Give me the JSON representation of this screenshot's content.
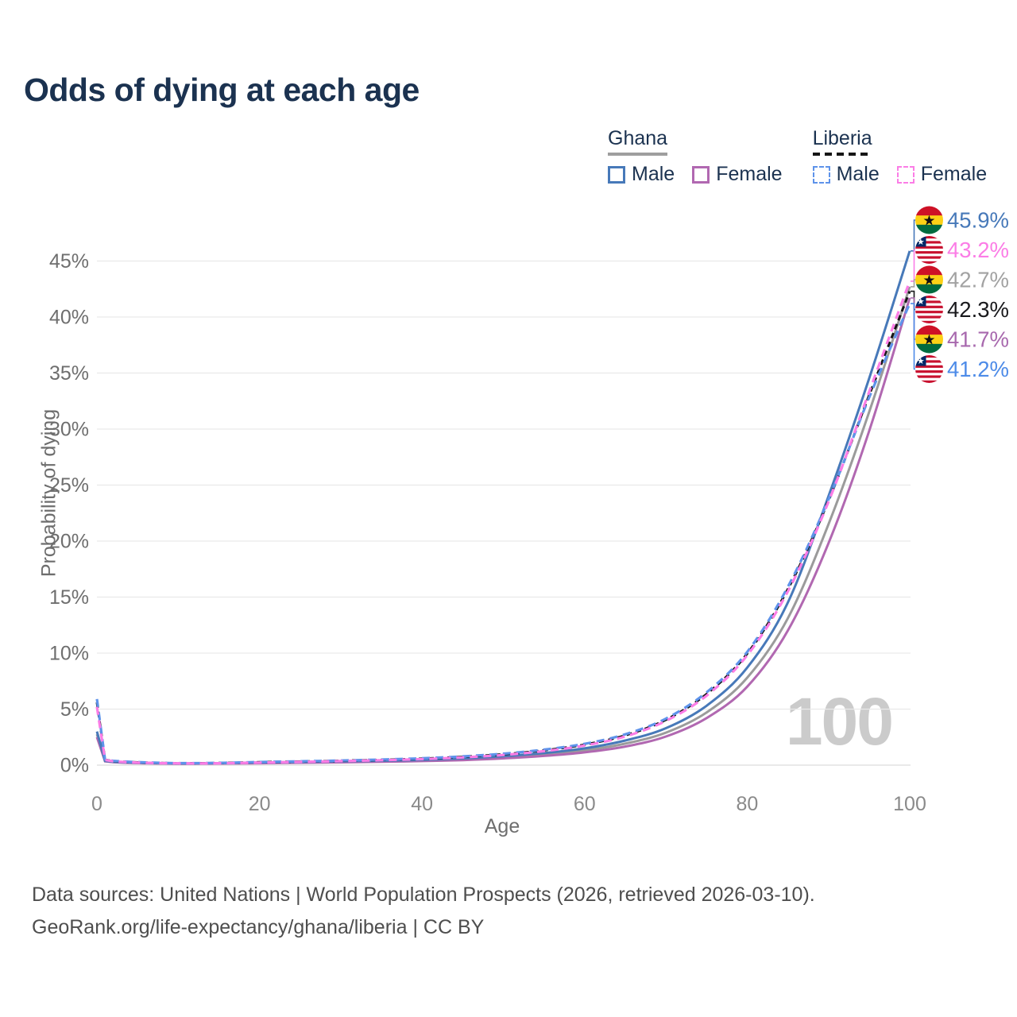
{
  "title": "Odds of dying at each age",
  "legend": {
    "groups": [
      {
        "country": "Ghana",
        "line_style": "solid",
        "line_color": "#9e9e9e",
        "items": [
          {
            "label": "Male",
            "color": "#4779b9",
            "dashed": false
          },
          {
            "label": "Female",
            "color": "#b168b1",
            "dashed": false
          }
        ]
      },
      {
        "country": "Liberia",
        "line_style": "dashed",
        "line_color": "#161616",
        "items": [
          {
            "label": "Male",
            "color": "#5e93ea",
            "dashed": true
          },
          {
            "label": "Female",
            "color": "#fb7de6",
            "dashed": true
          }
        ]
      }
    ]
  },
  "chart_data": {
    "type": "line",
    "title": "Odds of dying at each age",
    "xlabel": "Age",
    "ylabel": "Probability of dying",
    "xlim": [
      0,
      100
    ],
    "ylim_pct": [
      0,
      47
    ],
    "x_ticks": [
      0,
      20,
      40,
      60,
      80,
      100
    ],
    "y_ticks_pct": [
      0,
      5,
      10,
      15,
      20,
      25,
      30,
      35,
      40,
      45
    ],
    "grid": "horizontal",
    "legend_position": "top-right",
    "watermark": "100",
    "series": [
      {
        "id": "ghana-all",
        "name": "Ghana (both sexes)",
        "country": "ghana",
        "color": "#9b9b9b",
        "dash": null,
        "width": 3,
        "points": [
          [
            0,
            2.75
          ],
          [
            1,
            0.36
          ],
          [
            2,
            0.28
          ],
          [
            5,
            0.2
          ],
          [
            10,
            0.145
          ],
          [
            15,
            0.16
          ],
          [
            20,
            0.21
          ],
          [
            25,
            0.25
          ],
          [
            30,
            0.29
          ],
          [
            35,
            0.34
          ],
          [
            40,
            0.41
          ],
          [
            45,
            0.52
          ],
          [
            50,
            0.7
          ],
          [
            55,
            0.94
          ],
          [
            60,
            1.31
          ],
          [
            65,
            1.92
          ],
          [
            70,
            2.9
          ],
          [
            75,
            4.7
          ],
          [
            80,
            7.8
          ],
          [
            85,
            13.1
          ],
          [
            90,
            21.5
          ],
          [
            95,
            31.5
          ],
          [
            100,
            42.7
          ]
        ]
      },
      {
        "id": "ghana-female",
        "name": "Ghana Female",
        "country": "ghana",
        "color": "#b168b1",
        "dash": null,
        "width": 3,
        "points": [
          [
            0,
            2.5
          ],
          [
            1,
            0.34
          ],
          [
            2,
            0.26
          ],
          [
            5,
            0.18
          ],
          [
            10,
            0.13
          ],
          [
            15,
            0.14
          ],
          [
            20,
            0.17
          ],
          [
            25,
            0.21
          ],
          [
            30,
            0.25
          ],
          [
            35,
            0.3
          ],
          [
            40,
            0.36
          ],
          [
            45,
            0.45
          ],
          [
            50,
            0.6
          ],
          [
            55,
            0.82
          ],
          [
            60,
            1.14
          ],
          [
            65,
            1.66
          ],
          [
            70,
            2.55
          ],
          [
            75,
            4.2
          ],
          [
            80,
            7.0
          ],
          [
            85,
            12.0
          ],
          [
            90,
            19.8
          ],
          [
            95,
            29.8
          ],
          [
            100,
            41.7
          ]
        ]
      },
      {
        "id": "ghana-male",
        "name": "Ghana Male",
        "country": "ghana",
        "color": "#4779b9",
        "dash": null,
        "width": 3,
        "points": [
          [
            0,
            3.0
          ],
          [
            1,
            0.38
          ],
          [
            2,
            0.3
          ],
          [
            5,
            0.22
          ],
          [
            10,
            0.16
          ],
          [
            15,
            0.18
          ],
          [
            20,
            0.24
          ],
          [
            25,
            0.28
          ],
          [
            30,
            0.33
          ],
          [
            35,
            0.39
          ],
          [
            40,
            0.47
          ],
          [
            45,
            0.6
          ],
          [
            50,
            0.8
          ],
          [
            55,
            1.08
          ],
          [
            60,
            1.5
          ],
          [
            65,
            2.2
          ],
          [
            70,
            3.3
          ],
          [
            75,
            5.3
          ],
          [
            80,
            8.7
          ],
          [
            85,
            14.5
          ],
          [
            90,
            24.0
          ],
          [
            95,
            34.5
          ],
          [
            100,
            45.9
          ]
        ]
      },
      {
        "id": "liberia-all",
        "name": "Liberia (both sexes)",
        "country": "liberia",
        "color": "#151515",
        "dash": [
          7,
          5
        ],
        "width": 3,
        "points": [
          [
            0,
            5.6
          ],
          [
            1,
            0.48
          ],
          [
            2,
            0.36
          ],
          [
            5,
            0.25
          ],
          [
            10,
            0.17
          ],
          [
            15,
            0.19
          ],
          [
            20,
            0.26
          ],
          [
            25,
            0.32
          ],
          [
            30,
            0.39
          ],
          [
            35,
            0.47
          ],
          [
            40,
            0.58
          ],
          [
            45,
            0.74
          ],
          [
            50,
            0.97
          ],
          [
            55,
            1.32
          ],
          [
            60,
            1.83
          ],
          [
            65,
            2.66
          ],
          [
            70,
            4.05
          ],
          [
            75,
            6.35
          ],
          [
            80,
            9.95
          ],
          [
            85,
            15.7
          ],
          [
            90,
            23.6
          ],
          [
            95,
            33.0
          ],
          [
            100,
            42.3
          ]
        ]
      },
      {
        "id": "liberia-male",
        "name": "Liberia Male",
        "country": "liberia",
        "color": "#5e93ea",
        "dash": [
          10,
          7
        ],
        "width": 3.2,
        "points": [
          [
            0,
            5.9
          ],
          [
            1,
            0.5
          ],
          [
            2,
            0.38
          ],
          [
            5,
            0.27
          ],
          [
            10,
            0.18
          ],
          [
            15,
            0.2
          ],
          [
            20,
            0.28
          ],
          [
            25,
            0.34
          ],
          [
            30,
            0.41
          ],
          [
            35,
            0.5
          ],
          [
            40,
            0.61
          ],
          [
            45,
            0.78
          ],
          [
            50,
            1.02
          ],
          [
            55,
            1.38
          ],
          [
            60,
            1.9
          ],
          [
            65,
            2.75
          ],
          [
            70,
            4.15
          ],
          [
            75,
            6.5
          ],
          [
            80,
            10.1
          ],
          [
            85,
            15.9
          ],
          [
            90,
            23.7
          ],
          [
            95,
            32.8
          ],
          [
            100,
            41.2
          ]
        ]
      },
      {
        "id": "liberia-female",
        "name": "Liberia Female",
        "country": "liberia",
        "color": "#fb7de6",
        "dash": [
          10,
          7
        ],
        "width": 3.2,
        "points": [
          [
            0,
            5.2
          ],
          [
            1,
            0.46
          ],
          [
            2,
            0.34
          ],
          [
            5,
            0.23
          ],
          [
            10,
            0.16
          ],
          [
            15,
            0.17
          ],
          [
            20,
            0.23
          ],
          [
            25,
            0.29
          ],
          [
            30,
            0.36
          ],
          [
            35,
            0.44
          ],
          [
            40,
            0.54
          ],
          [
            45,
            0.69
          ],
          [
            50,
            0.91
          ],
          [
            55,
            1.25
          ],
          [
            60,
            1.75
          ],
          [
            65,
            2.56
          ],
          [
            70,
            3.95
          ],
          [
            75,
            6.2
          ],
          [
            80,
            9.8
          ],
          [
            85,
            15.5
          ],
          [
            90,
            23.5
          ],
          [
            95,
            33.3
          ],
          [
            100,
            43.2
          ]
        ]
      }
    ],
    "end_labels": [
      {
        "flag": "ghana",
        "text": "45.9%",
        "value_pct": 45.9,
        "color": "#4779b9"
      },
      {
        "flag": "liberia",
        "text": "43.2%",
        "value_pct": 43.2,
        "color": "#fb7de6"
      },
      {
        "flag": "ghana",
        "text": "42.7%",
        "value_pct": 42.7,
        "color": "#a2a2a2"
      },
      {
        "flag": "liberia",
        "text": "42.3%",
        "value_pct": 42.3,
        "color": "#19191c"
      },
      {
        "flag": "ghana",
        "text": "41.7%",
        "value_pct": 41.7,
        "color": "#a869ae"
      },
      {
        "flag": "liberia",
        "text": "41.2%",
        "value_pct": 41.2,
        "color": "#4d8be8"
      }
    ]
  },
  "footer": {
    "line1": "Data sources: United Nations | World Population Prospects (2026, retrieved 2026-03-10).",
    "line2": "GeoRank.org/life-expectancy/ghana/liberia | CC BY"
  }
}
